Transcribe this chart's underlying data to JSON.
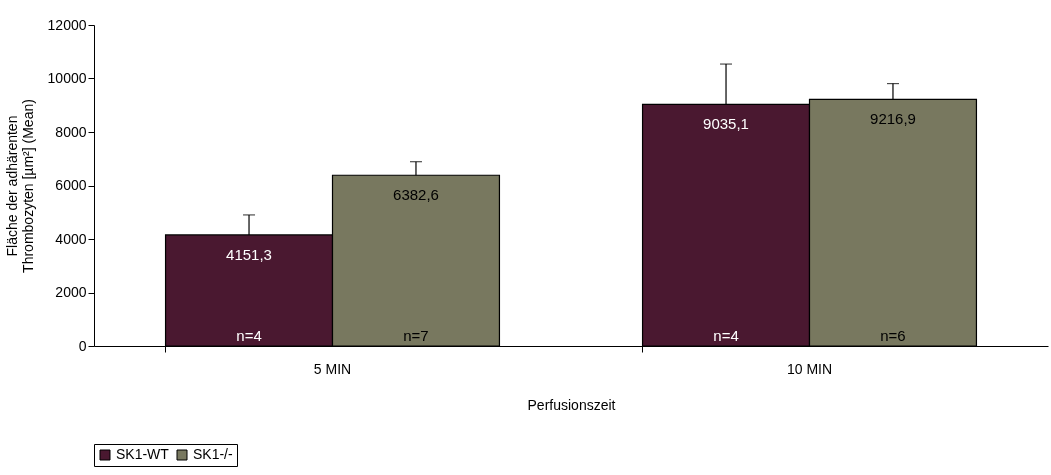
{
  "chart_data": {
    "type": "bar",
    "xlabel": "Perfusionszeit",
    "ylabel": "Fläche der adhärenten\nThrombozyten [µm²] (Mean)",
    "categories": [
      "5 MIN",
      "10 MIN"
    ],
    "series": [
      {
        "name": "SK1-WT",
        "color": "#4a1830",
        "values": [
          4151.3,
          9035.1
        ],
        "errors": [
          [
            4151.3,
            4900
          ],
          [
            9035.1,
            10540
          ]
        ],
        "value_labels": [
          "4151,3",
          "9035,1"
        ]
      },
      {
        "name": "SK1-/-",
        "color": "#78785f",
        "values": [
          6382.6,
          9216.9
        ],
        "errors": [
          [
            6382.6,
            6890
          ],
          [
            9216.9,
            9810
          ]
        ],
        "value_labels": [
          "6382,6",
          "9216,9"
        ]
      }
    ],
    "ylim": [
      0,
      12000
    ],
    "yticks": [
      0,
      2000,
      4000,
      6000,
      8000,
      10000,
      12000
    ],
    "grid": false,
    "legend": "bottom",
    "annotations": [
      "n=4",
      "n=7",
      "n=4",
      "n=6"
    ]
  }
}
